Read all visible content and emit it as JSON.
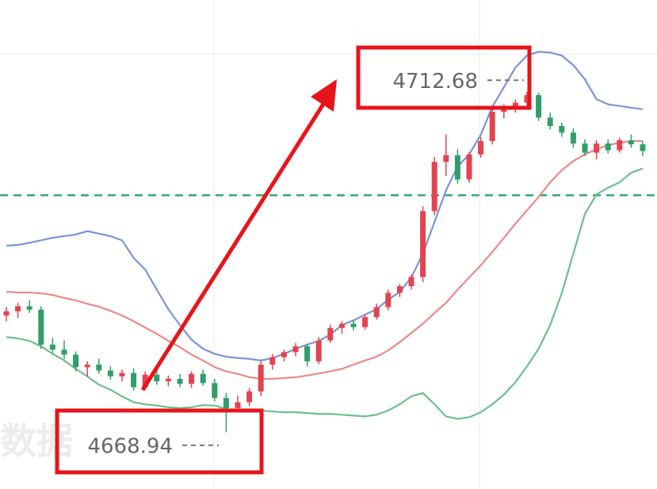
{
  "chart_data": {
    "type": "candlestick",
    "ylim": [
      4663.7,
      4722.3
    ],
    "up_color": "#e3434f",
    "down_color": "#2f9e6b",
    "candles": [
      [
        4684.5,
        4685.5,
        4683.8,
        4685.0
      ],
      [
        4685.0,
        4686.0,
        4684.2,
        4685.6
      ],
      [
        4685.6,
        4686.3,
        4684.8,
        4685.2
      ],
      [
        4685.2,
        4685.6,
        4680.5,
        4681.0
      ],
      [
        4681.0,
        4681.8,
        4680.0,
        4680.4
      ],
      [
        4680.4,
        4681.5,
        4679.3,
        4679.8
      ],
      [
        4679.8,
        4680.2,
        4677.8,
        4678.3
      ],
      [
        4678.3,
        4679.0,
        4677.2,
        4678.6
      ],
      [
        4678.6,
        4679.3,
        4677.5,
        4677.9
      ],
      [
        4677.9,
        4678.4,
        4676.8,
        4677.2
      ],
      [
        4677.2,
        4678.0,
        4676.6,
        4677.6
      ],
      [
        4677.6,
        4678.2,
        4675.5,
        4675.9
      ],
      [
        4675.9,
        4677.8,
        4675.6,
        4677.4
      ],
      [
        4677.4,
        4678.1,
        4676.2,
        4676.6
      ],
      [
        4676.6,
        4677.3,
        4676.0,
        4676.9
      ],
      [
        4676.9,
        4677.5,
        4675.9,
        4676.3
      ],
      [
        4676.3,
        4677.8,
        4675.8,
        4677.5
      ],
      [
        4677.5,
        4678.0,
        4676.1,
        4676.4
      ],
      [
        4676.4,
        4676.9,
        4674.2,
        4674.6
      ],
      [
        4674.6,
        4675.2,
        4670.5,
        4673.4
      ],
      [
        4673.4,
        4674.9,
        4672.9,
        4674.1
      ],
      [
        4674.1,
        4675.8,
        4673.6,
        4675.4
      ],
      [
        4675.4,
        4679.0,
        4674.8,
        4678.6
      ],
      [
        4678.6,
        4679.9,
        4678.0,
        4679.5
      ],
      [
        4679.5,
        4680.4,
        4679.0,
        4680.1
      ],
      [
        4680.1,
        4681.2,
        4679.6,
        4680.8
      ],
      [
        4680.8,
        4681.1,
        4678.4,
        4679.0
      ],
      [
        4679.0,
        4681.9,
        4678.7,
        4681.5
      ],
      [
        4681.5,
        4683.4,
        4681.2,
        4683.0
      ],
      [
        4683.0,
        4683.8,
        4682.3,
        4683.5
      ],
      [
        4683.5,
        4683.9,
        4682.7,
        4683.1
      ],
      [
        4683.1,
        4684.6,
        4682.8,
        4684.3
      ],
      [
        4684.3,
        4685.9,
        4684.0,
        4685.5
      ],
      [
        4685.5,
        4687.6,
        4685.1,
        4687.2
      ],
      [
        4687.2,
        4688.3,
        4686.7,
        4688.0
      ],
      [
        4688.0,
        4689.4,
        4687.6,
        4689.1
      ],
      [
        4689.1,
        4697.6,
        4688.5,
        4697.0
      ],
      [
        4697.0,
        4703.5,
        4696.5,
        4702.9
      ],
      [
        4702.9,
        4706.2,
        4701.2,
        4703.7
      ],
      [
        4703.7,
        4704.4,
        4700.3,
        4700.8
      ],
      [
        4700.8,
        4704.1,
        4700.4,
        4703.8
      ],
      [
        4703.8,
        4705.9,
        4703.4,
        4705.4
      ],
      [
        4705.4,
        4709.5,
        4705.0,
        4708.9
      ],
      [
        4708.9,
        4709.8,
        4708.1,
        4709.3
      ],
      [
        4709.3,
        4710.4,
        4708.8,
        4710.0
      ],
      [
        4710.0,
        4711.3,
        4709.6,
        4710.9
      ],
      [
        4710.9,
        4711.2,
        4707.8,
        4708.2
      ],
      [
        4708.2,
        4708.8,
        4706.8,
        4707.2
      ],
      [
        4707.2,
        4707.6,
        4705.9,
        4706.4
      ],
      [
        4706.4,
        4706.9,
        4704.6,
        4705.1
      ],
      [
        4705.1,
        4705.6,
        4703.6,
        4704.0
      ],
      [
        4704.0,
        4705.5,
        4703.2,
        4705.1
      ],
      [
        4705.1,
        4705.6,
        4703.9,
        4704.3
      ],
      [
        4704.3,
        4705.8,
        4704.0,
        4705.5
      ],
      [
        4705.5,
        4706.2,
        4704.6,
        4705.0
      ],
      [
        4705.0,
        4705.4,
        4703.6,
        4704.2
      ]
    ],
    "bands": [
      {
        "color": "#7b93d9",
        "values": [
          4692.85,
          4692.95,
          4693.2,
          4693.5,
          4693.8,
          4694.0,
          4694.2,
          4694.6,
          4694.3,
          4694.0,
          4693.5,
          4691.4,
          4690.0,
          4687.6,
          4685.25,
          4683.35,
          4681.6,
          4680.5,
          4679.9,
          4679.55,
          4679.4,
          4679.3,
          4679.1,
          4679.4,
          4679.9,
          4680.5,
          4681.0,
          4681.45,
          4682.2,
          4683.35,
          4683.9,
          4684.6,
          4685.25,
          4686.4,
          4687.3,
          4689.05,
          4691.9,
          4695.7,
          4699.5,
          4702.35,
          4703.8,
          4706.15,
          4709.5,
          4711.85,
          4714.2,
          4715.65,
          4716.1,
          4716.0,
          4715.65,
          4714.5,
          4712.8,
          4710.4,
          4709.8,
          4709.6,
          4709.4,
          4709.2
        ]
      },
      {
        "color": "#ec8a87",
        "values": [
          4687.35,
          4687.25,
          4687.25,
          4687.15,
          4686.95,
          4686.6,
          4686.3,
          4685.9,
          4685.55,
          4685.05,
          4684.5,
          4683.8,
          4683.05,
          4682.3,
          4681.45,
          4680.7,
          4679.8,
          4679.1,
          4678.3,
          4677.8,
          4677.5,
          4677.1,
          4676.9,
          4676.9,
          4677.0,
          4677.1,
          4677.3,
          4677.55,
          4677.8,
          4678.1,
          4678.6,
          4679.1,
          4679.55,
          4680.3,
          4681.3,
          4682.4,
          4683.5,
          4684.8,
          4686.0,
          4687.6,
          4689.05,
          4690.5,
          4692.1,
          4693.8,
          4695.5,
          4697.1,
          4698.7,
          4700.45,
          4701.9,
          4703.0,
          4703.8,
          4704.4,
          4704.9,
          4705.2,
          4705.4,
          4705.4
        ]
      },
      {
        "color": "#6cbf8c",
        "values": [
          4681.9,
          4681.75,
          4681.45,
          4680.8,
          4679.9,
          4679.1,
          4678.1,
          4677.2,
          4676.2,
          4675.6,
          4674.8,
          4674.1,
          4673.85,
          4673.7,
          4673.5,
          4673.4,
          4673.5,
          4673.75,
          4673.7,
          4673.3,
          4673.1,
          4673.1,
          4673.1,
          4673.0,
          4672.9,
          4672.9,
          4672.8,
          4672.7,
          4672.7,
          4672.6,
          4672.5,
          4672.4,
          4672.6,
          4673.1,
          4673.85,
          4674.8,
          4675.2,
          4673.85,
          4672.4,
          4672.1,
          4672.3,
          4672.9,
          4673.85,
          4675.0,
          4676.5,
          4678.4,
          4680.5,
          4683.35,
          4687.15,
          4691.9,
          4696.65,
          4699.0,
          4699.8,
          4700.45,
          4701.6,
          4702.1
        ]
      }
    ],
    "reference_line": {
      "value": 4698.9,
      "color": "#3aa56e"
    },
    "annotations": [
      4712.68,
      4668.94
    ],
    "watermark": "数据"
  }
}
